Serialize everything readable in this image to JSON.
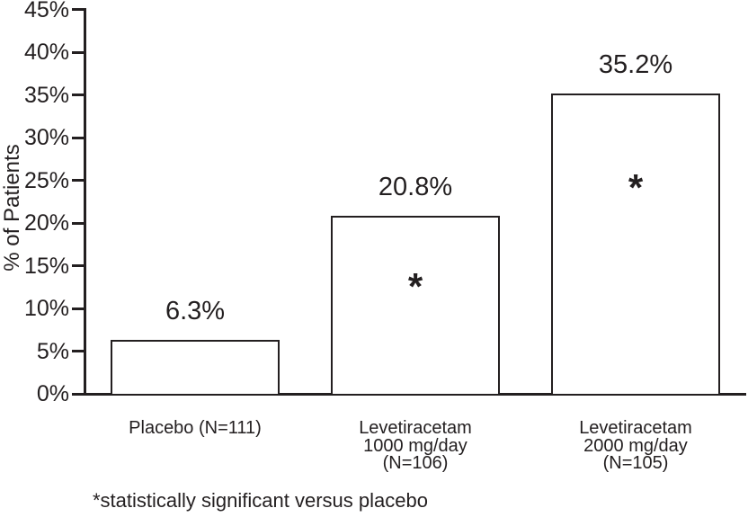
{
  "chart_data": {
    "type": "bar",
    "ylabel": "% of Patients",
    "xlabel": "",
    "ylim": [
      0,
      45
    ],
    "ytick_step": 5,
    "grid": false,
    "legend": null,
    "bar_fill": "#ffffff",
    "bar_outline": "#231f20",
    "yticks": [
      {
        "value": 0,
        "label": "0%"
      },
      {
        "value": 5,
        "label": "5%"
      },
      {
        "value": 10,
        "label": "10%"
      },
      {
        "value": 15,
        "label": "15%"
      },
      {
        "value": 20,
        "label": "20%"
      },
      {
        "value": 25,
        "label": "25%"
      },
      {
        "value": 30,
        "label": "30%"
      },
      {
        "value": 35,
        "label": "35%"
      },
      {
        "value": 40,
        "label": "40%"
      },
      {
        "value": 45,
        "label": "45%"
      }
    ],
    "bars": [
      {
        "category_lines": [
          "Placebo (N=111)"
        ],
        "value": 6.3,
        "value_label": "6.3%",
        "significant": false,
        "marker": "",
        "marker_frac_from_top": 0
      },
      {
        "category_lines": [
          "Levetiracetam",
          "1000 mg/day",
          "(N=106)"
        ],
        "value": 20.8,
        "value_label": "20.8%",
        "significant": true,
        "marker": "*",
        "marker_frac_from_top": 0.34
      },
      {
        "category_lines": [
          "Levetiracetam",
          "2000 mg/day",
          "(N=105)"
        ],
        "value": 35.2,
        "value_label": "35.2%",
        "significant": true,
        "marker": "*",
        "marker_frac_from_top": 0.28
      }
    ],
    "footnote": "*statistically significant versus placebo"
  },
  "colors": {
    "ink": "#231f20",
    "background": "#ffffff"
  }
}
